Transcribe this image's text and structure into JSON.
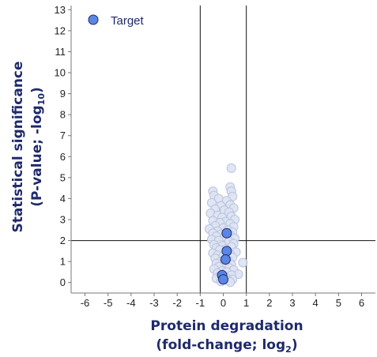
{
  "chart_data": {
    "type": "scatter",
    "xlabel": "Protein degradation",
    "xlabel_line2": "(fold-change; log",
    "xlabel_sub": "2",
    "xlabel_close": ")",
    "ylabel": "Statistical significance",
    "ylabel_line2": "(P-value; -log",
    "ylabel_sub": "10",
    "ylabel_close": ")",
    "xlim": [
      -6.6,
      6.6
    ],
    "ylim": [
      -0.5,
      13.2
    ],
    "xticks": [
      "-6",
      "-5",
      "-4",
      "-3",
      "-2",
      "-1",
      "0",
      "1",
      "2",
      "3",
      "4",
      "5",
      "6"
    ],
    "yticks": [
      "0",
      "1",
      "2",
      "3",
      "4",
      "5",
      "6",
      "7",
      "8",
      "9",
      "10",
      "11",
      "12",
      "13"
    ],
    "reference_lines": {
      "vertical": [
        -1,
        1
      ],
      "horizontal": [
        2
      ]
    },
    "legend": {
      "label": "Target",
      "placement": "top-left"
    },
    "colors": {
      "background_points": "#dde3f3",
      "background_edge": "#b9c2dd",
      "target_points": "#5b86e5",
      "target_edge": "#1f2d6b",
      "axis_title": "#1f2a6b",
      "legend_text": "#1f2a6b"
    },
    "series": [
      {
        "name": "Target",
        "points": [
          {
            "x": 0.15,
            "y": 2.35
          },
          {
            "x": 0.15,
            "y": 1.5
          },
          {
            "x": 0.1,
            "y": 1.1
          },
          {
            "x": -0.05,
            "y": 0.35
          },
          {
            "x": 0.0,
            "y": 0.15
          }
        ]
      },
      {
        "name": "",
        "points": [
          {
            "x": 0.35,
            "y": 5.45
          },
          {
            "x": 0.3,
            "y": 4.55
          },
          {
            "x": 0.35,
            "y": 4.35
          },
          {
            "x": -0.45,
            "y": 4.35
          },
          {
            "x": -0.4,
            "y": 4.15
          },
          {
            "x": 0.4,
            "y": 4.1
          },
          {
            "x": -0.2,
            "y": 4.0
          },
          {
            "x": 0.15,
            "y": 3.9
          },
          {
            "x": -0.5,
            "y": 3.8
          },
          {
            "x": 0.3,
            "y": 3.7
          },
          {
            "x": -0.1,
            "y": 3.65
          },
          {
            "x": 0.45,
            "y": 3.55
          },
          {
            "x": -0.35,
            "y": 3.5
          },
          {
            "x": 0.05,
            "y": 3.45
          },
          {
            "x": 0.25,
            "y": 3.35
          },
          {
            "x": -0.55,
            "y": 3.3
          },
          {
            "x": -0.25,
            "y": 3.2
          },
          {
            "x": 0.35,
            "y": 3.15
          },
          {
            "x": -0.05,
            "y": 3.1
          },
          {
            "x": 0.5,
            "y": 3.0
          },
          {
            "x": -0.45,
            "y": 2.95
          },
          {
            "x": 0.1,
            "y": 2.9
          },
          {
            "x": -0.15,
            "y": 2.85
          },
          {
            "x": 0.3,
            "y": 2.8
          },
          {
            "x": -0.35,
            "y": 2.7
          },
          {
            "x": 0.45,
            "y": 2.65
          },
          {
            "x": 0.0,
            "y": 2.6
          },
          {
            "x": -0.6,
            "y": 2.55
          },
          {
            "x": 0.2,
            "y": 2.5
          },
          {
            "x": -0.25,
            "y": 2.45
          },
          {
            "x": 0.4,
            "y": 2.4
          },
          {
            "x": -0.45,
            "y": 2.35
          },
          {
            "x": -0.1,
            "y": 2.3
          },
          {
            "x": 0.3,
            "y": 2.25
          },
          {
            "x": -0.3,
            "y": 2.2
          },
          {
            "x": 0.05,
            "y": 2.15
          },
          {
            "x": 0.5,
            "y": 2.1
          },
          {
            "x": -0.5,
            "y": 2.05
          },
          {
            "x": -0.2,
            "y": 2.0
          },
          {
            "x": 0.25,
            "y": 1.95
          },
          {
            "x": 0.45,
            "y": 1.85
          },
          {
            "x": -0.4,
            "y": 1.8
          },
          {
            "x": -0.05,
            "y": 1.75
          },
          {
            "x": 0.35,
            "y": 1.7
          },
          {
            "x": -0.3,
            "y": 1.65
          },
          {
            "x": 0.1,
            "y": 1.6
          },
          {
            "x": -0.15,
            "y": 1.55
          },
          {
            "x": 0.55,
            "y": 1.45
          },
          {
            "x": -0.45,
            "y": 1.4
          },
          {
            "x": 0.3,
            "y": 1.35
          },
          {
            "x": -0.25,
            "y": 1.3
          },
          {
            "x": 0.0,
            "y": 1.25
          },
          {
            "x": 0.4,
            "y": 1.2
          },
          {
            "x": -0.35,
            "y": 1.15
          },
          {
            "x": 0.2,
            "y": 1.05
          },
          {
            "x": -0.1,
            "y": 1.0
          },
          {
            "x": 0.85,
            "y": 0.95
          },
          {
            "x": -0.3,
            "y": 0.9
          },
          {
            "x": 0.35,
            "y": 0.85
          },
          {
            "x": 0.05,
            "y": 0.8
          },
          {
            "x": -0.2,
            "y": 0.75
          },
          {
            "x": 0.25,
            "y": 0.7
          },
          {
            "x": -0.4,
            "y": 0.65
          },
          {
            "x": 0.45,
            "y": 0.6
          },
          {
            "x": -0.05,
            "y": 0.55
          },
          {
            "x": 0.15,
            "y": 0.5
          },
          {
            "x": -0.25,
            "y": 0.45
          },
          {
            "x": 0.65,
            "y": 0.4
          },
          {
            "x": 0.35,
            "y": 0.35
          },
          {
            "x": -0.15,
            "y": 0.3
          },
          {
            "x": 0.1,
            "y": 0.25
          },
          {
            "x": -0.3,
            "y": 0.2
          },
          {
            "x": 0.4,
            "y": 0.15
          },
          {
            "x": 0.2,
            "y": 0.1
          },
          {
            "x": -0.1,
            "y": 0.05
          },
          {
            "x": 0.3,
            "y": 0.02
          }
        ]
      }
    ]
  }
}
